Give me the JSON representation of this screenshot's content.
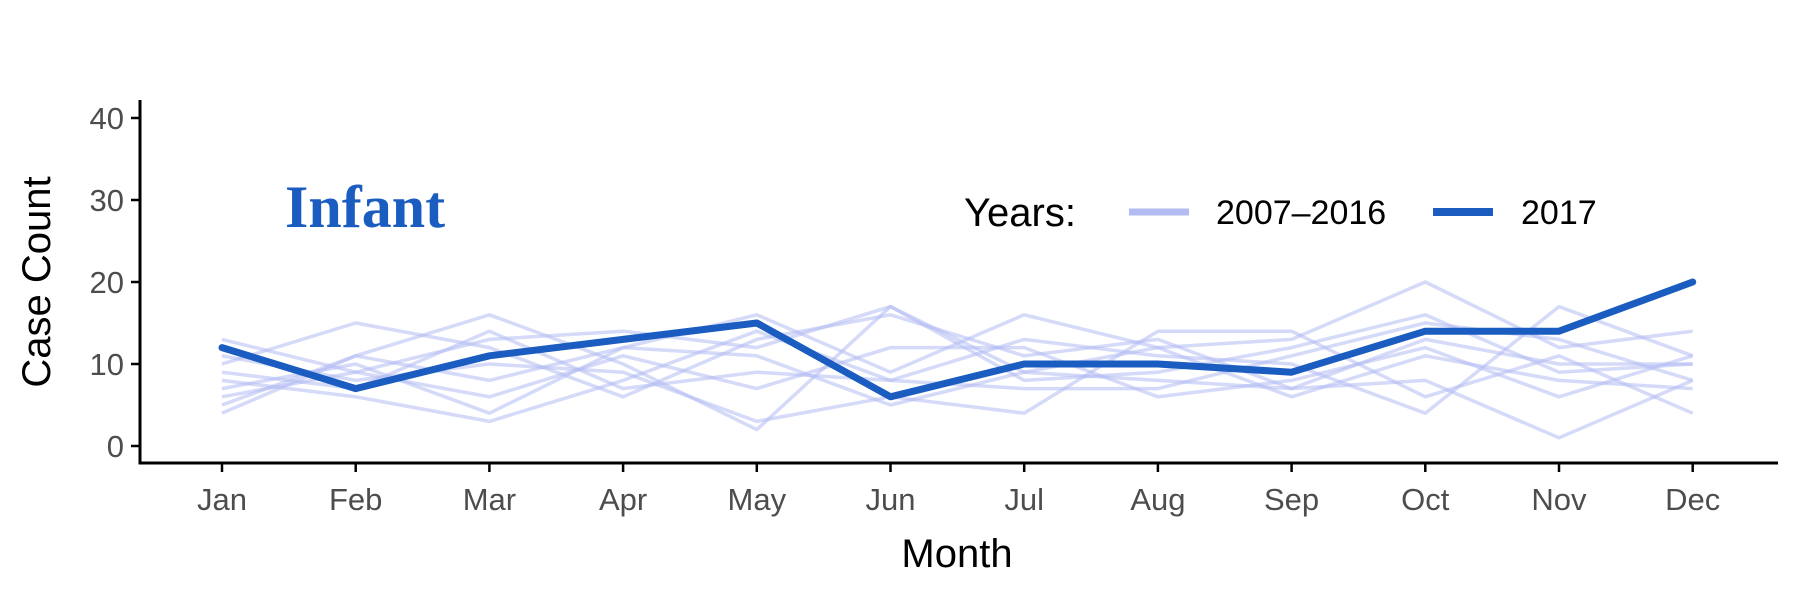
{
  "chart_data": {
    "type": "line",
    "panel_label": "Infant",
    "xlabel": "Month",
    "ylabel": "Case Count",
    "categories": [
      "Jan",
      "Feb",
      "Mar",
      "Apr",
      "May",
      "Jun",
      "Jul",
      "Aug",
      "Sep",
      "Oct",
      "Nov",
      "Dec"
    ],
    "ylim": [
      0,
      40
    ],
    "yticks": [
      0,
      10,
      20,
      30,
      40
    ],
    "grid": false,
    "legend": {
      "title": "Years:",
      "placement": "top-right",
      "entries": [
        {
          "label": "2007–2016",
          "color": "#b3bcf2"
        },
        {
          "label": "2017",
          "color": "#1a5cbf"
        }
      ]
    },
    "background_series": [
      {
        "values": [
          12,
          7,
          11,
          13,
          15,
          6,
          10,
          10,
          9,
          14,
          14,
          20
        ]
      },
      {
        "values": [
          13,
          9,
          13,
          14,
          12,
          17,
          9,
          12,
          13,
          20,
          12,
          14
        ]
      },
      {
        "values": [
          10,
          15,
          12,
          6,
          13,
          16,
          11,
          13,
          7,
          8,
          1,
          8
        ]
      },
      {
        "values": [
          8,
          6,
          3,
          8,
          14,
          8,
          13,
          11,
          10,
          4,
          17,
          11
        ]
      },
      {
        "values": [
          4,
          11,
          16,
          10,
          2,
          17,
          8,
          9,
          12,
          16,
          9,
          10
        ]
      },
      {
        "values": [
          7,
          10,
          4,
          12,
          16,
          9,
          16,
          12,
          6,
          11,
          8,
          7
        ]
      },
      {
        "values": [
          11,
          8,
          10,
          9,
          3,
          6,
          4,
          14,
          14,
          6,
          11,
          4
        ]
      },
      {
        "values": [
          6,
          9,
          6,
          11,
          7,
          12,
          12,
          6,
          8,
          12,
          6,
          11
        ]
      },
      {
        "values": [
          9,
          7,
          14,
          7,
          9,
          8,
          7,
          7,
          11,
          15,
          13,
          8
        ]
      },
      {
        "values": [
          5,
          11,
          8,
          12,
          11,
          5,
          9,
          8,
          7,
          13,
          10,
          10
        ]
      }
    ],
    "series": [
      {
        "name": "2017",
        "values": [
          12,
          7,
          11,
          13,
          15,
          6,
          10,
          10,
          9,
          14,
          14,
          20
        ]
      }
    ]
  },
  "colors": {
    "highlight": "#1a5cbf",
    "background": "#b3bcf2",
    "axis": "#000000",
    "tick_text": "#4d4d4d",
    "panel_label": "#1a5cbf"
  }
}
